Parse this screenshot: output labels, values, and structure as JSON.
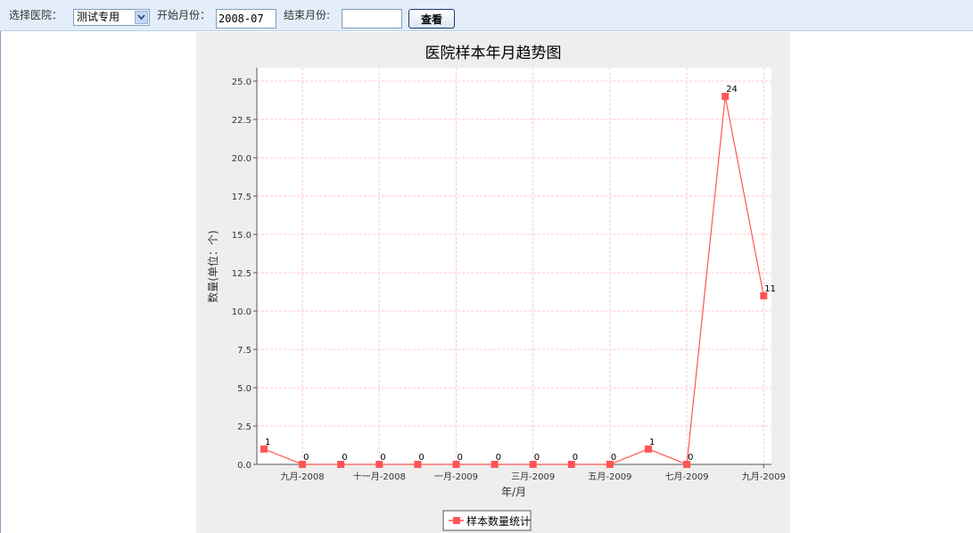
{
  "toolbar": {
    "hospital_label": "选择医院：",
    "hospital_value": "测试专用",
    "start_label": "开始月份：",
    "start_value": "2008-07",
    "end_label": "结束月份:",
    "end_value": "",
    "view_label": "查看"
  },
  "colors": {
    "series": "#ff5555",
    "grid": "#ffc8c8",
    "panel": "#eeeeee"
  },
  "chart_data": {
    "type": "line",
    "title": "医院样本年月趋势图",
    "xlabel": "年/月",
    "ylabel": "数量(单位：个)",
    "ylim": [
      0,
      25
    ],
    "yticks": [
      "0.0",
      "2.5",
      "5.0",
      "7.5",
      "10.0",
      "12.5",
      "15.0",
      "17.5",
      "20.0",
      "22.5",
      "25.0"
    ],
    "x_tick_labels": [
      {
        "index": 1,
        "label": "九月-2008"
      },
      {
        "index": 3,
        "label": "十一月-2008"
      },
      {
        "index": 5,
        "label": "一月-2009"
      },
      {
        "index": 7,
        "label": "三月-2009"
      },
      {
        "index": 9,
        "label": "五月-2009"
      },
      {
        "index": 11,
        "label": "七月-2009"
      },
      {
        "index": 13,
        "label": "九月-2009"
      }
    ],
    "grid": true,
    "legend_position": "bottom",
    "series": [
      {
        "name": "样本数量统计",
        "values": [
          1,
          0,
          0,
          0,
          0,
          0,
          0,
          0,
          0,
          0,
          1,
          0,
          24,
          11
        ],
        "labels": [
          "1",
          "0",
          "0",
          "0",
          "0",
          "0",
          "0",
          "0",
          "0",
          "0",
          "1",
          "0",
          "24",
          "11"
        ]
      }
    ]
  }
}
